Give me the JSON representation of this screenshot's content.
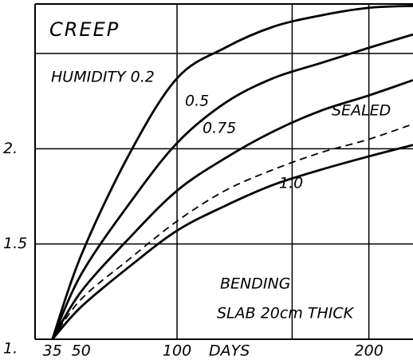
{
  "chart_data": {
    "type": "line",
    "title": "CREEP",
    "x_label": "DAYS",
    "annotations": [
      "BENDING",
      "SLAB 20cm THICK"
    ],
    "x": [
      35,
      50,
      75,
      100,
      125,
      150,
      175,
      200,
      223
    ],
    "series": [
      {
        "name": "HUMIDITY 0.2",
        "color": "#000000",
        "dashed": false,
        "values": [
          1,
          1.44,
          1.97,
          2.37,
          2.53,
          2.64,
          2.7,
          2.74,
          2.75
        ]
      },
      {
        "name": "0.5",
        "color": "#000000",
        "dashed": false,
        "values": [
          1,
          1.34,
          1.71,
          2.03,
          2.24,
          2.37,
          2.45,
          2.53,
          2.6
        ]
      },
      {
        "name": "0.75",
        "color": "#000000",
        "dashed": false,
        "values": [
          1,
          1.25,
          1.53,
          1.78,
          1.95,
          2.09,
          2.2,
          2.28,
          2.36
        ]
      },
      {
        "name": "SEALED",
        "color": "#000000",
        "dashed": true,
        "values": [
          1,
          1.21,
          1.42,
          1.62,
          1.78,
          1.89,
          1.98,
          2.05,
          2.13
        ]
      },
      {
        "name": "1.0",
        "color": "#000000",
        "dashed": false,
        "values": [
          1,
          1.17,
          1.38,
          1.57,
          1.7,
          1.81,
          1.89,
          1.96,
          2.02
        ]
      }
    ],
    "xlim": [
      26,
      223
    ],
    "ylim": [
      1,
      2.76
    ],
    "xticks": [
      35,
      50,
      100,
      200
    ],
    "yticks": [
      {
        "value": 1,
        "label": "1."
      },
      1.5,
      {
        "value": 2,
        "label": "2."
      }
    ],
    "xgrid": [
      100,
      160,
      200
    ],
    "ygrid": [
      1.5,
      2,
      2.5
    ],
    "grid": true
  }
}
